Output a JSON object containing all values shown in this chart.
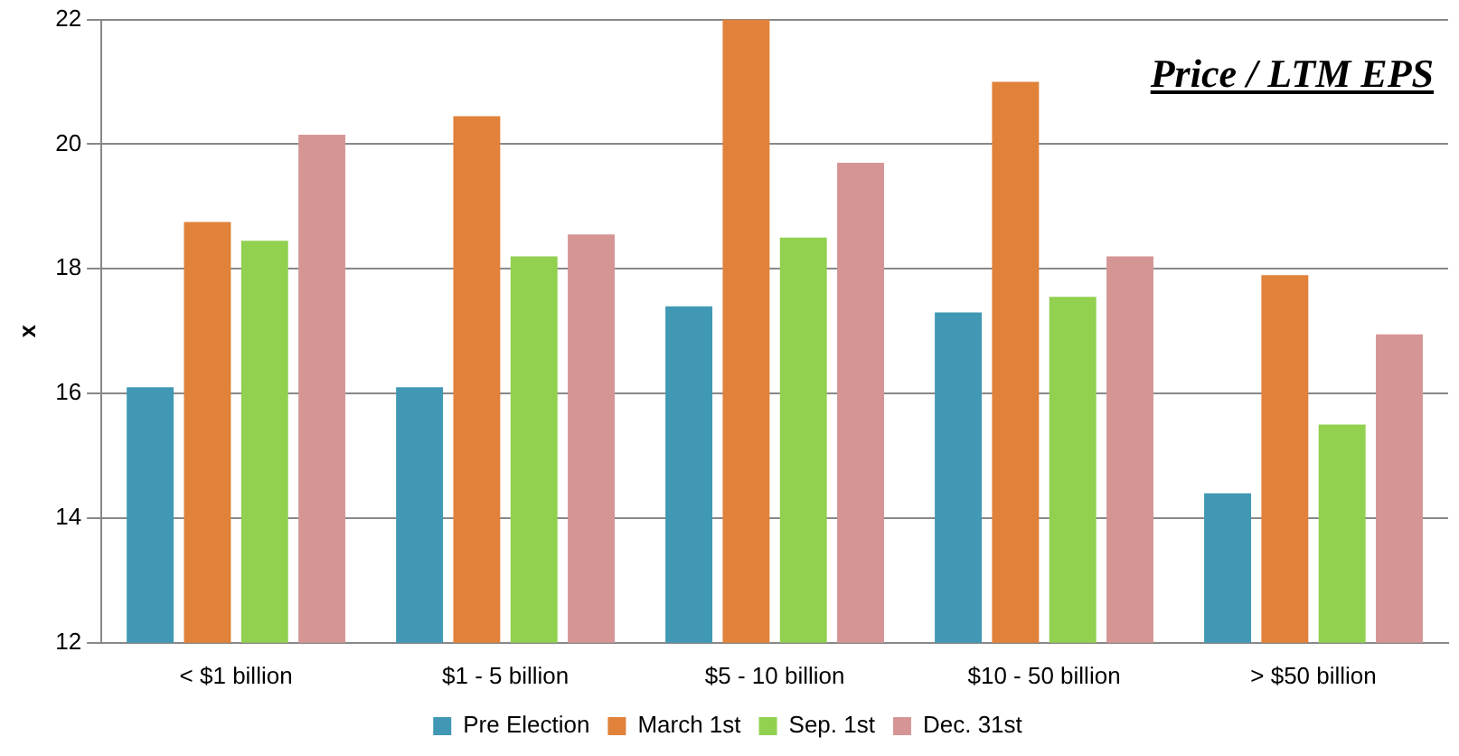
{
  "chart_data": {
    "type": "bar",
    "title": "Price / LTM EPS",
    "ylabel": "x",
    "categories": [
      "< $1 billion",
      "$1 - 5 billion",
      "$5 - 10 billion",
      "$10 - 50 billion",
      "> $50 billion"
    ],
    "series": [
      {
        "name": "Pre Election",
        "color": "#4198b4",
        "values": [
          16.1,
          16.1,
          17.4,
          17.3,
          14.4
        ]
      },
      {
        "name": "March 1st",
        "color": "#e0823a",
        "values": [
          18.75,
          20.45,
          22,
          21,
          17.9
        ]
      },
      {
        "name": "Sep. 1st",
        "color": "#92d050",
        "values": [
          18.45,
          18.2,
          18.5,
          17.55,
          15.5
        ]
      },
      {
        "name": "Dec. 31st",
        "color": "#d69595",
        "values": [
          20.15,
          18.55,
          19.7,
          18.2,
          16.95
        ]
      }
    ],
    "ylim": [
      12,
      22
    ],
    "yticks": [
      12,
      14,
      16,
      18,
      20,
      22
    ],
    "grid": "y",
    "legend": "bottom"
  }
}
